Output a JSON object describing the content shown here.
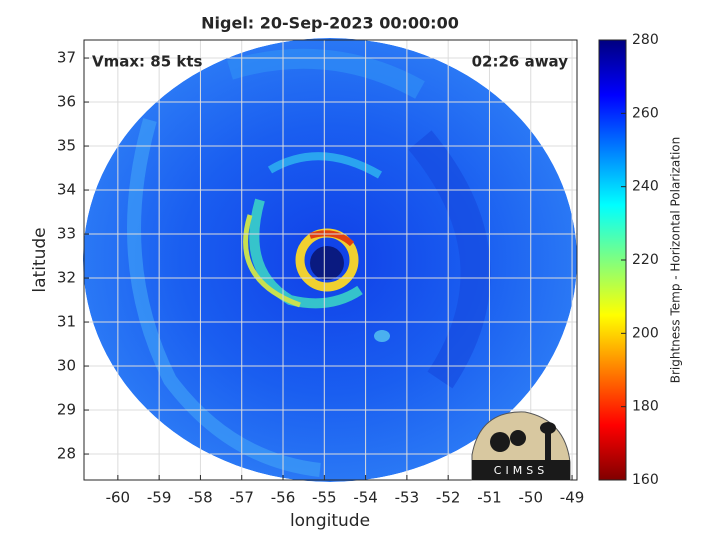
{
  "chart_data": {
    "type": "image-map",
    "title": "Nigel: 20-Sep-2023 00:00:00",
    "annotations": [
      "Vmax: 85 kts",
      "02:26 away"
    ],
    "x_label": "longitude",
    "y_label": "latitude",
    "xlim": [
      -60.82,
      -48.88
    ],
    "xticks": [
      -60,
      -59,
      -58,
      -57,
      -56,
      -55,
      -54,
      -53,
      -52,
      -51,
      -50,
      -49
    ],
    "ylim": [
      27.41,
      37.41
    ],
    "yticks": [
      28,
      29,
      30,
      31,
      32,
      33,
      34,
      35,
      36,
      37
    ],
    "grid": true,
    "colorbar": {
      "label": "Brightness Temp - Horizontal Polarization",
      "lim": [
        160,
        280
      ],
      "ticks": [
        160,
        180,
        200,
        220,
        240,
        260,
        280
      ],
      "colormap": "jet"
    },
    "logo": "CIMSS"
  }
}
